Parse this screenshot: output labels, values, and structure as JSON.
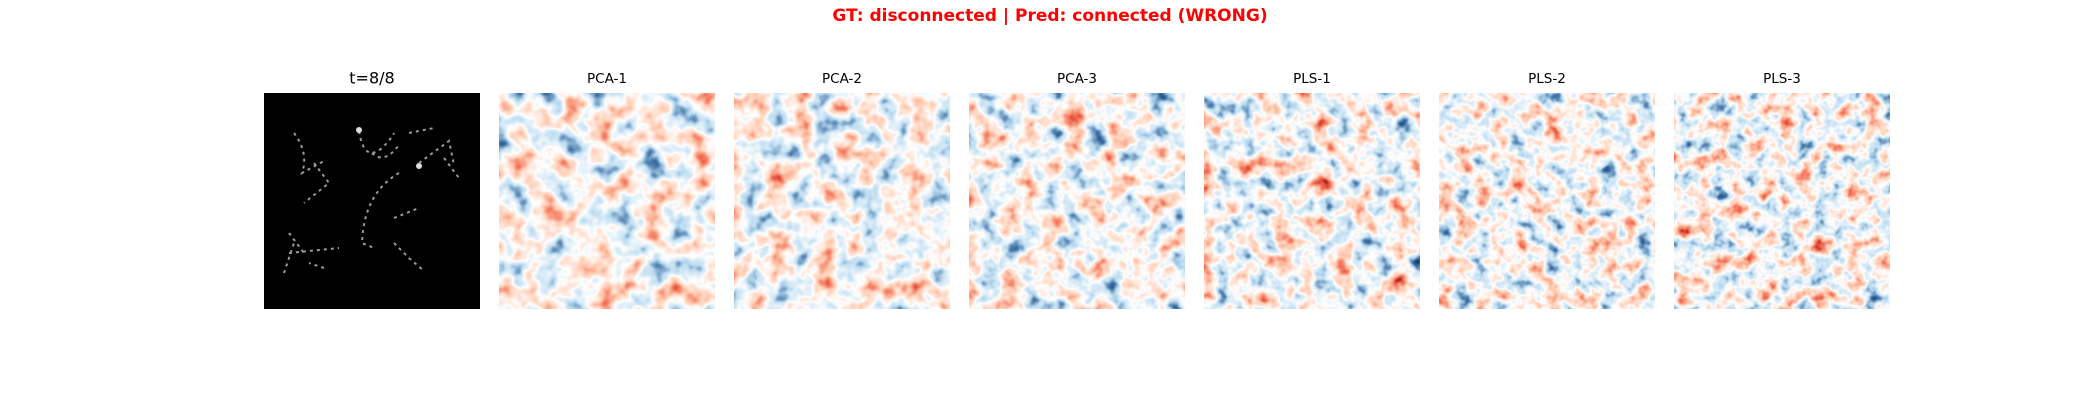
{
  "figure": {
    "title": "GT: disconnected | Pred: connected (WRONG)",
    "panels": [
      {
        "title": "t=8/8"
      },
      {
        "title": "PCA-1"
      },
      {
        "title": "PCA-2"
      },
      {
        "title": "PCA-3"
      },
      {
        "title": "PLS-1"
      },
      {
        "title": "PLS-2"
      },
      {
        "title": "PLS-3"
      }
    ]
  }
}
